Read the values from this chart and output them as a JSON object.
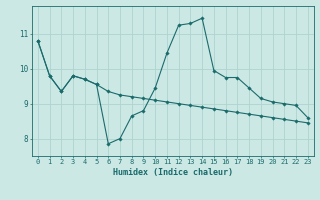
{
  "xlabel": "Humidex (Indice chaleur)",
  "ylabel": "",
  "bg_color": "#cce8e5",
  "grid_color": "#aed4d0",
  "line_color": "#1a6b6b",
  "line1_x": [
    0,
    1,
    2,
    3,
    4,
    5,
    6,
    7,
    8,
    9,
    10,
    11,
    12,
    13,
    14,
    15,
    16,
    17,
    18,
    19,
    20,
    21,
    22,
    23
  ],
  "line1_y": [
    10.8,
    9.8,
    9.35,
    9.8,
    9.7,
    9.55,
    7.85,
    8.0,
    8.65,
    8.8,
    9.45,
    10.45,
    11.25,
    11.3,
    11.45,
    9.95,
    9.75,
    9.75,
    9.45,
    9.15,
    9.05,
    9.0,
    8.95,
    8.6
  ],
  "line2_x": [
    0,
    1,
    2,
    3,
    4,
    5,
    6,
    7,
    8,
    9,
    10,
    11,
    12,
    13,
    14,
    15,
    16,
    17,
    18,
    19,
    20,
    21,
    22,
    23
  ],
  "line2_y": [
    10.8,
    9.8,
    9.35,
    9.8,
    9.7,
    9.55,
    9.35,
    9.25,
    9.2,
    9.15,
    9.1,
    9.05,
    9.0,
    8.95,
    8.9,
    8.85,
    8.8,
    8.75,
    8.7,
    8.65,
    8.6,
    8.55,
    8.5,
    8.45
  ],
  "xlim": [
    -0.5,
    23.5
  ],
  "ylim": [
    7.5,
    11.8
  ],
  "yticks": [
    8,
    9,
    10,
    11
  ],
  "xticks": [
    0,
    1,
    2,
    3,
    4,
    5,
    6,
    7,
    8,
    9,
    10,
    11,
    12,
    13,
    14,
    15,
    16,
    17,
    18,
    19,
    20,
    21,
    22,
    23
  ],
  "marker": "D",
  "markersize": 1.8,
  "linewidth": 0.8,
  "tick_fontsize": 5.0,
  "xlabel_fontsize": 6.0
}
